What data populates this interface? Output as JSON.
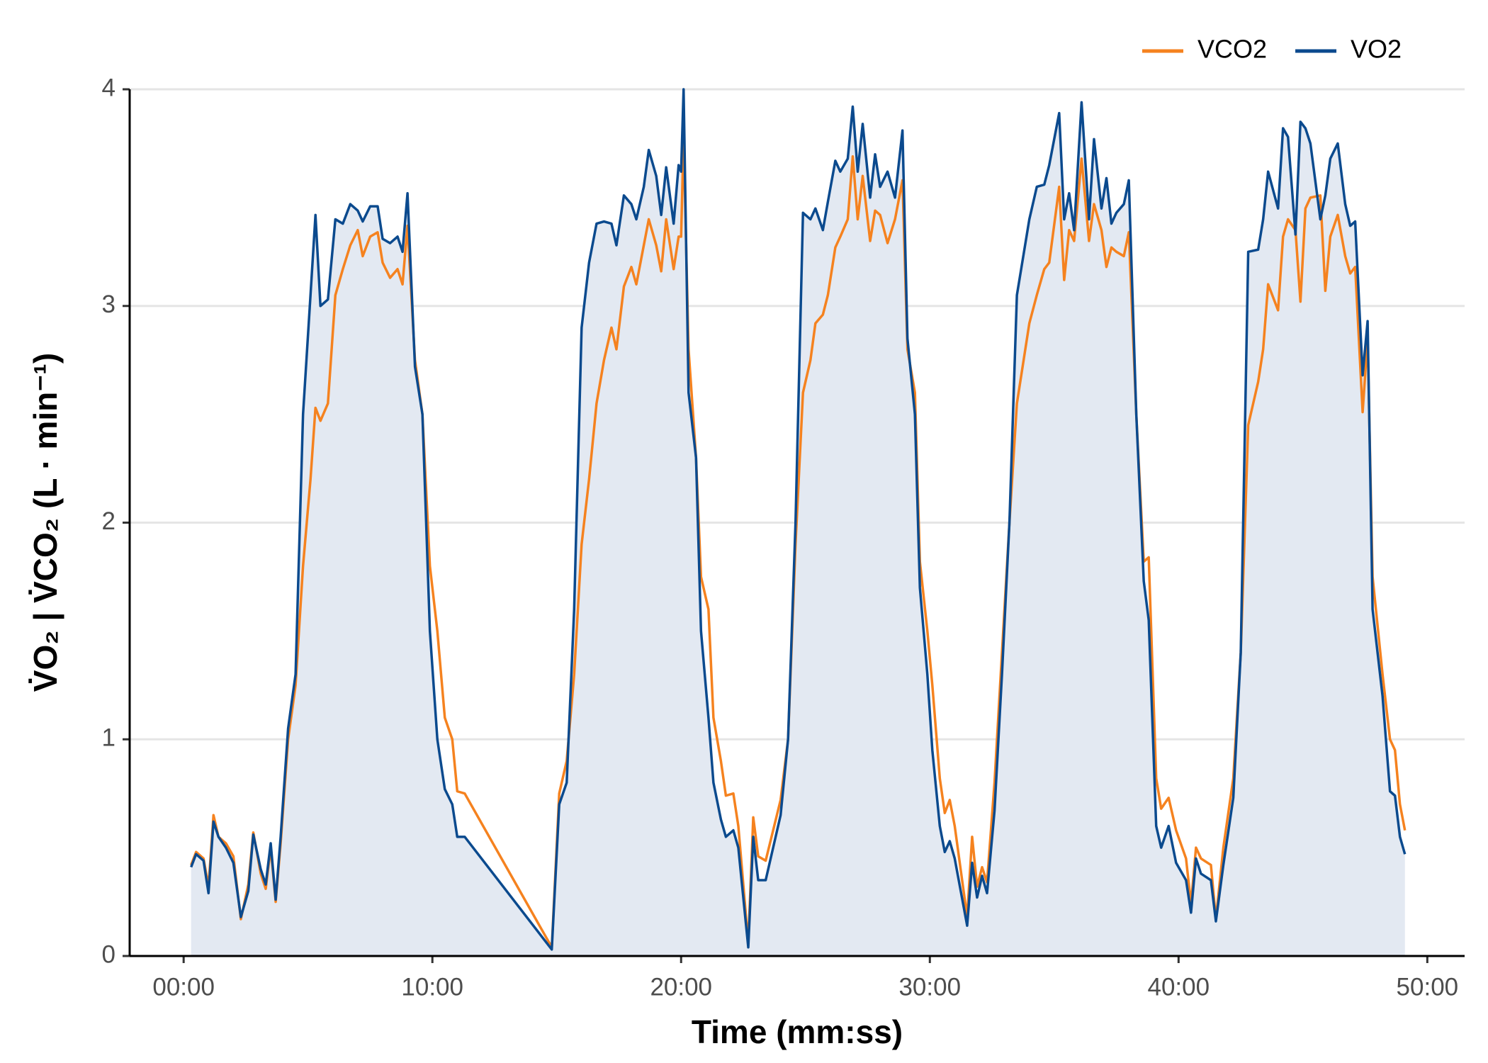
{
  "chart_data": {
    "type": "line",
    "x_label": "Time (mm:ss)",
    "y_label": "V̇O₂  |  V̇CO₂ (L · min⁻¹)",
    "x": [
      0.3,
      0.5,
      0.8,
      1.0,
      1.2,
      1.4,
      1.7,
      2.0,
      2.3,
      2.6,
      2.8,
      3.1,
      3.3,
      3.5,
      3.7,
      3.9,
      4.2,
      4.5,
      4.8,
      5.1,
      5.3,
      5.5,
      5.8,
      6.1,
      6.4,
      6.7,
      7.0,
      7.2,
      7.5,
      7.8,
      8.0,
      8.3,
      8.6,
      8.8,
      9.0,
      9.3,
      9.6,
      9.9,
      10.2,
      10.5,
      10.8,
      11.0,
      11.3,
      14.8,
      15.1,
      15.4,
      15.7,
      16.0,
      16.3,
      16.6,
      16.9,
      17.2,
      17.4,
      17.7,
      18.0,
      18.2,
      18.5,
      18.7,
      19.0,
      19.2,
      19.4,
      19.7,
      19.9,
      20.0,
      20.1,
      20.3,
      20.6,
      20.8,
      21.1,
      21.3,
      21.6,
      21.8,
      22.1,
      22.3,
      22.7,
      22.9,
      23.1,
      23.4,
      23.7,
      24.0,
      24.3,
      24.6,
      24.9,
      25.2,
      25.4,
      25.7,
      25.9,
      26.2,
      26.4,
      26.7,
      26.9,
      27.1,
      27.3,
      27.6,
      27.8,
      28.0,
      28.3,
      28.6,
      28.9,
      29.1,
      29.4,
      29.6,
      29.9,
      30.1,
      30.4,
      30.6,
      30.8,
      31.0,
      31.5,
      31.7,
      31.9,
      32.1,
      32.3,
      32.6,
      32.9,
      33.2,
      33.5,
      34.0,
      34.3,
      34.6,
      34.8,
      35.2,
      35.4,
      35.6,
      35.8,
      36.1,
      36.4,
      36.6,
      36.9,
      37.1,
      37.3,
      37.5,
      37.8,
      38.0,
      38.3,
      38.6,
      38.8,
      39.1,
      39.3,
      39.6,
      39.9,
      40.3,
      40.5,
      40.7,
      40.9,
      41.3,
      41.5,
      41.8,
      42.2,
      42.5,
      42.8,
      43.2,
      43.4,
      43.6,
      44.0,
      44.2,
      44.4,
      44.7,
      44.9,
      45.1,
      45.3,
      45.7,
      45.9,
      46.1,
      46.4,
      46.7,
      46.9,
      47.1,
      47.4,
      47.6,
      47.8,
      48.2,
      48.5,
      48.7,
      48.9,
      49.1
    ],
    "series": [
      {
        "name": "VCO2",
        "color": "#f5821f",
        "values": [
          0.42,
          0.48,
          0.45,
          0.32,
          0.65,
          0.55,
          0.52,
          0.46,
          0.17,
          0.33,
          0.57,
          0.38,
          0.31,
          0.5,
          0.25,
          0.52,
          1.0,
          1.25,
          1.8,
          2.2,
          2.53,
          2.47,
          2.55,
          3.05,
          3.17,
          3.28,
          3.35,
          3.23,
          3.32,
          3.34,
          3.2,
          3.13,
          3.17,
          3.1,
          3.37,
          2.75,
          2.5,
          1.8,
          1.5,
          1.1,
          1.0,
          0.76,
          0.75,
          0.04,
          0.75,
          0.9,
          1.3,
          1.9,
          2.2,
          2.55,
          2.75,
          2.9,
          2.8,
          3.09,
          3.18,
          3.1,
          3.28,
          3.4,
          3.28,
          3.16,
          3.4,
          3.17,
          3.32,
          3.32,
          3.78,
          2.8,
          2.3,
          1.75,
          1.6,
          1.1,
          0.9,
          0.74,
          0.75,
          0.6,
          0.06,
          0.64,
          0.46,
          0.44,
          0.58,
          0.72,
          1.0,
          1.9,
          2.6,
          2.75,
          2.92,
          2.96,
          3.05,
          3.27,
          3.32,
          3.4,
          3.69,
          3.4,
          3.6,
          3.3,
          3.44,
          3.42,
          3.29,
          3.4,
          3.58,
          2.8,
          2.6,
          1.82,
          1.5,
          1.25,
          0.82,
          0.66,
          0.72,
          0.6,
          0.18,
          0.55,
          0.32,
          0.41,
          0.34,
          0.8,
          1.4,
          2.0,
          2.55,
          2.92,
          3.05,
          3.17,
          3.2,
          3.55,
          3.12,
          3.35,
          3.3,
          3.68,
          3.3,
          3.47,
          3.35,
          3.18,
          3.27,
          3.25,
          3.23,
          3.34,
          2.5,
          1.82,
          1.84,
          0.82,
          0.68,
          0.73,
          0.58,
          0.45,
          0.24,
          0.5,
          0.45,
          0.42,
          0.17,
          0.5,
          0.82,
          1.4,
          2.45,
          2.65,
          2.8,
          3.1,
          2.98,
          3.32,
          3.4,
          3.35,
          3.02,
          3.45,
          3.5,
          3.51,
          3.07,
          3.32,
          3.42,
          3.23,
          3.15,
          3.18,
          2.51,
          2.85,
          1.75,
          1.3,
          1.0,
          0.95,
          0.7,
          0.58
        ]
      },
      {
        "name": "VO2",
        "color": "#0b4a8e",
        "fill": true,
        "fill_color": "#e3e9f2",
        "values": [
          0.41,
          0.47,
          0.44,
          0.29,
          0.62,
          0.55,
          0.5,
          0.43,
          0.18,
          0.3,
          0.56,
          0.4,
          0.33,
          0.52,
          0.26,
          0.55,
          1.05,
          1.3,
          2.5,
          3.05,
          3.42,
          3.0,
          3.03,
          3.4,
          3.38,
          3.47,
          3.44,
          3.39,
          3.46,
          3.46,
          3.31,
          3.29,
          3.32,
          3.25,
          3.52,
          2.72,
          2.5,
          1.5,
          1.0,
          0.77,
          0.7,
          0.55,
          0.55,
          0.03,
          0.7,
          0.8,
          1.6,
          2.9,
          3.2,
          3.38,
          3.39,
          3.38,
          3.28,
          3.51,
          3.47,
          3.4,
          3.55,
          3.72,
          3.6,
          3.42,
          3.64,
          3.38,
          3.65,
          3.62,
          4.0,
          2.6,
          2.3,
          1.5,
          1.1,
          0.8,
          0.63,
          0.55,
          0.58,
          0.5,
          0.04,
          0.55,
          0.35,
          0.35,
          0.5,
          0.65,
          1.0,
          2.0,
          3.43,
          3.4,
          3.45,
          3.35,
          3.48,
          3.67,
          3.62,
          3.68,
          3.92,
          3.62,
          3.84,
          3.5,
          3.7,
          3.55,
          3.62,
          3.5,
          3.81,
          2.85,
          2.5,
          1.7,
          1.3,
          0.95,
          0.6,
          0.48,
          0.53,
          0.45,
          0.14,
          0.43,
          0.27,
          0.37,
          0.29,
          0.67,
          1.3,
          2.0,
          3.05,
          3.4,
          3.55,
          3.56,
          3.65,
          3.89,
          3.4,
          3.52,
          3.35,
          3.94,
          3.4,
          3.77,
          3.45,
          3.59,
          3.38,
          3.43,
          3.47,
          3.58,
          2.5,
          1.73,
          1.55,
          0.6,
          0.5,
          0.6,
          0.43,
          0.35,
          0.2,
          0.45,
          0.38,
          0.35,
          0.16,
          0.42,
          0.73,
          1.4,
          3.25,
          3.26,
          3.4,
          3.62,
          3.45,
          3.82,
          3.78,
          3.33,
          3.85,
          3.82,
          3.75,
          3.4,
          3.51,
          3.68,
          3.75,
          3.47,
          3.37,
          3.39,
          2.68,
          2.93,
          1.6,
          1.2,
          0.76,
          0.74,
          0.55,
          0.47
        ]
      }
    ],
    "xlim": [
      -2.17,
      51.5
    ],
    "xticks": [
      {
        "value": 0,
        "label": "00:00"
      },
      {
        "value": 10,
        "label": "10:00"
      },
      {
        "value": 20,
        "label": "20:00"
      },
      {
        "value": 30,
        "label": "30:00"
      },
      {
        "value": 40,
        "label": "40:00"
      },
      {
        "value": 50,
        "label": "50:00"
      }
    ],
    "ylim": [
      0,
      4
    ],
    "yticks": [
      0,
      1,
      2,
      3,
      4
    ],
    "grid": true,
    "legend": "top-right"
  }
}
